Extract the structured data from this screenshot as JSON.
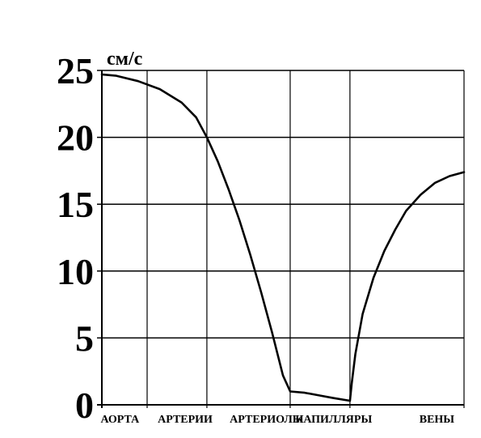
{
  "chart_data": {
    "type": "line",
    "ylabel": "см/с",
    "ylim": [
      0,
      25
    ],
    "yticks": [
      "0",
      "5",
      "10",
      "15",
      "20",
      "25"
    ],
    "xlim": [
      0,
      1
    ],
    "categories": [
      {
        "label": "АОРТА",
        "x": 0.05
      },
      {
        "label": "АРТЕРИИ",
        "x": 0.23
      },
      {
        "label": "АРТЕРИОЛЫ",
        "x": 0.455
      },
      {
        "label": "КАПИЛЛЯРЫ",
        "x": 0.64
      },
      {
        "label": "ВЕНЫ",
        "x": 0.925
      }
    ],
    "gridlines_x": [
      0,
      0.125,
      0.29,
      0.52,
      0.685,
      1
    ],
    "grid": true,
    "series": [
      {
        "color": "#000000",
        "x": [
          0,
          0.04,
          0.1,
          0.16,
          0.22,
          0.26,
          0.29,
          0.32,
          0.35,
          0.38,
          0.41,
          0.44,
          0.47,
          0.5,
          0.52,
          0.56,
          0.6,
          0.64,
          0.685,
          0.69,
          0.7,
          0.72,
          0.75,
          0.78,
          0.81,
          0.84,
          0.88,
          0.92,
          0.96,
          1
        ],
        "y": [
          24.7,
          24.6,
          24.2,
          23.6,
          22.6,
          21.5,
          20.0,
          18.2,
          16.1,
          13.8,
          11.2,
          8.4,
          5.4,
          2.2,
          1.0,
          0.9,
          0.7,
          0.5,
          0.3,
          1.6,
          3.8,
          6.8,
          9.5,
          11.5,
          13.1,
          14.5,
          15.7,
          16.6,
          17.1,
          17.4
        ]
      }
    ]
  }
}
